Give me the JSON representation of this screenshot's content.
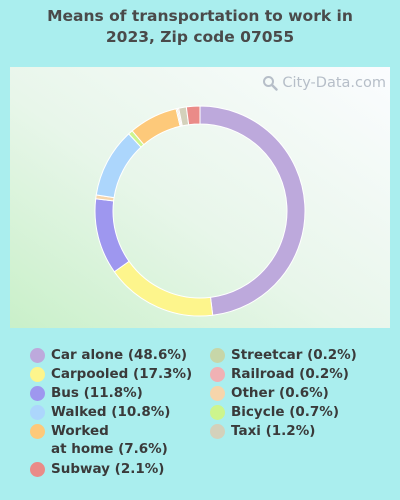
{
  "chart_data": {
    "type": "pie",
    "title_lines": [
      "Means of transportation to work in",
      "2023, Zip code 07055"
    ],
    "watermark": "City-Data.com",
    "slices": [
      {
        "label": "Car alone",
        "value": 48.6,
        "color": "#bda9dc",
        "legend": "Car alone (48.6%)"
      },
      {
        "label": "Carpooled",
        "value": 17.3,
        "color": "#fdf58c",
        "legend": "Carpooled (17.3%)"
      },
      {
        "label": "Bus",
        "value": 11.8,
        "color": "#9e97ef",
        "legend": "Bus (11.8%)"
      },
      {
        "label": "Other",
        "value": 0.6,
        "color": "#f6d5ab",
        "legend": "Other (0.6%)"
      },
      {
        "label": "Walked",
        "value": 10.8,
        "color": "#acd6fc",
        "legend": "Walked (10.8%)"
      },
      {
        "label": "Bicycle",
        "value": 0.7,
        "color": "#cdf58d",
        "legend": "Bicycle (0.7%)"
      },
      {
        "label": "Worked at home",
        "value": 7.6,
        "color": "#fdc97a",
        "legend_lines": [
          "Worked",
          "at home (7.6%)"
        ]
      },
      {
        "label": "Streetcar",
        "value": 0.2,
        "color": "#c7d6a8",
        "legend": "Streetcar (0.2%)"
      },
      {
        "label": "Railroad",
        "value": 0.2,
        "color": "#f0b1b4",
        "legend": "Railroad (0.2%)"
      },
      {
        "label": "Taxi",
        "value": 1.2,
        "color": "#d4d1bb",
        "legend": "Taxi (1.2%)"
      },
      {
        "label": "Subway",
        "value": 2.1,
        "color": "#ea8b88",
        "legend": "Subway (2.1%)"
      }
    ]
  }
}
